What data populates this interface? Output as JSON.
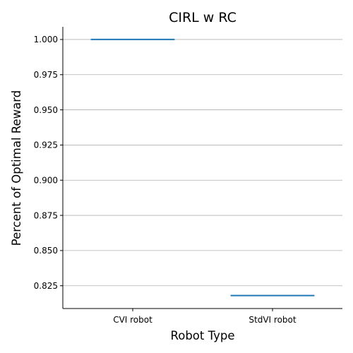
{
  "chart_data": {
    "type": "box",
    "title": "CIRL w RC",
    "xlabel": "Robot Type",
    "ylabel": "Percent of Optimal Reward",
    "categories": [
      "CVI robot",
      "StdVI robot"
    ],
    "values": [
      1.0,
      0.818
    ],
    "ylim": [
      0.8088,
      1.009
    ],
    "yticks": [
      0.825,
      0.85,
      0.875,
      0.9,
      0.925,
      0.95,
      0.975,
      1.0
    ],
    "ytick_labels": [
      "0.825",
      "0.850",
      "0.875",
      "0.900",
      "0.925",
      "0.950",
      "0.975",
      "1.000"
    ],
    "grid": "y",
    "legend": "none",
    "series_color": "#1f77b4"
  }
}
